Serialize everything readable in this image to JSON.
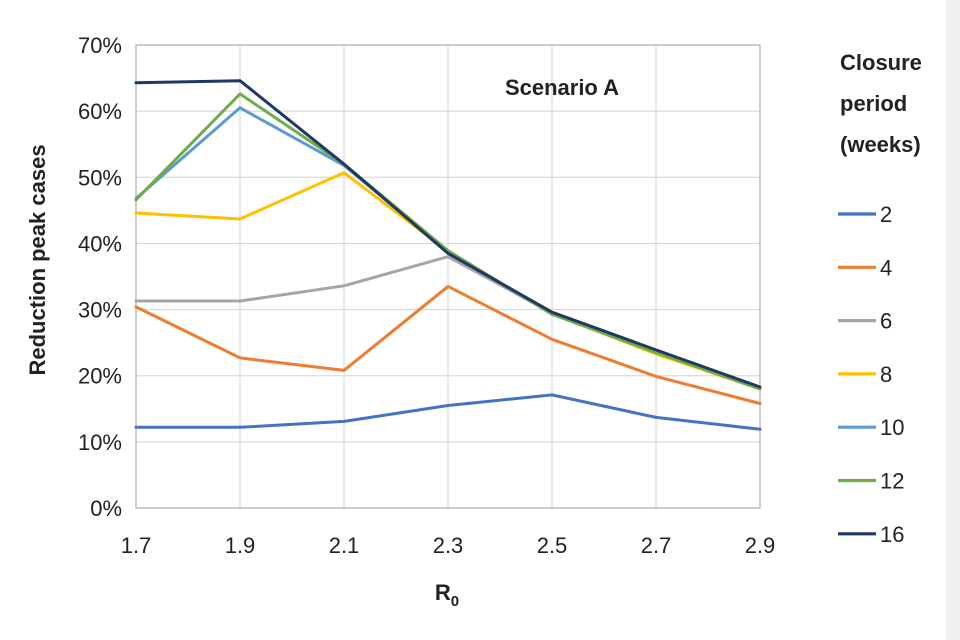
{
  "chart_data": {
    "type": "line",
    "annotation": "Scenario A",
    "xlabel": "R",
    "xlabel_sub": "0",
    "ylabel": "Reduction peak cases",
    "x": [
      1.7,
      1.9,
      2.1,
      2.3,
      2.5,
      2.7,
      2.9
    ],
    "x_tick_labels": [
      "1.7",
      "1.9",
      "2.1",
      "2.3",
      "2.5",
      "2.7",
      "2.9"
    ],
    "ylim": [
      0,
      70
    ],
    "y_ticks": [
      0,
      10,
      20,
      30,
      40,
      50,
      60,
      70
    ],
    "y_tick_labels": [
      "0%",
      "10%",
      "20%",
      "30%",
      "40%",
      "50%",
      "60%",
      "70%"
    ],
    "grid": true,
    "legend_title_lines": [
      "Closure",
      "period",
      "(weeks)"
    ],
    "legend_position": "right",
    "series": [
      {
        "name": "2",
        "color": "#4472C4",
        "values": [
          12.2,
          12.2,
          13.1,
          15.5,
          17.1,
          13.7,
          11.9
        ]
      },
      {
        "name": "4",
        "color": "#ED7D31",
        "values": [
          30.4,
          22.7,
          20.8,
          33.5,
          25.5,
          19.9,
          15.8
        ]
      },
      {
        "name": "6",
        "color": "#A5A5A5",
        "values": [
          31.3,
          31.3,
          33.6,
          38.0,
          29.5,
          23.5,
          18.0
        ]
      },
      {
        "name": "8",
        "color": "#FFC000",
        "values": [
          44.6,
          43.7,
          50.7,
          38.8,
          29.4,
          23.3,
          18.0
        ]
      },
      {
        "name": "10",
        "color": "#5B9BD5",
        "values": [
          46.8,
          60.5,
          51.8,
          38.8,
          29.3,
          23.6,
          18.1
        ]
      },
      {
        "name": "12",
        "color": "#70AD47",
        "values": [
          46.6,
          62.6,
          52.0,
          38.9,
          29.3,
          23.5,
          18.0
        ]
      },
      {
        "name": "16",
        "color": "#203864",
        "values": [
          64.3,
          64.6,
          52.0,
          38.5,
          29.6,
          23.9,
          18.3
        ]
      }
    ]
  }
}
